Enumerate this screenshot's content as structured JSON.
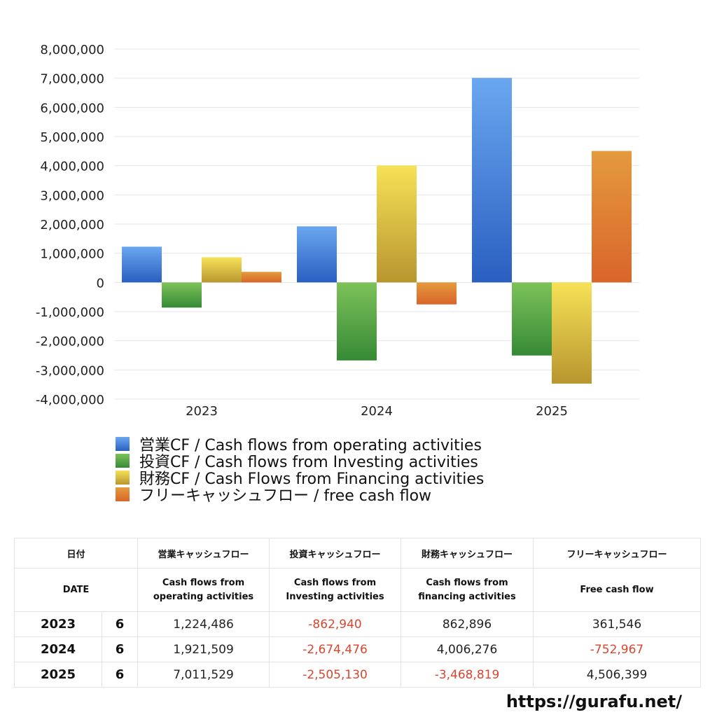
{
  "chart_data": {
    "type": "bar",
    "categories": [
      "2023",
      "2024",
      "2025"
    ],
    "ylim": [
      -4000000,
      8000000
    ],
    "yticks": [
      "8,000,000",
      "7,000,000",
      "6,000,000",
      "5,000,000",
      "4,000,000",
      "3,000,000",
      "2,000,000",
      "1,000,000",
      "0",
      "-1,000,000",
      "-2,000,000",
      "-3,000,000",
      "-4,000,000"
    ],
    "ytick_values": [
      8000000,
      7000000,
      6000000,
      5000000,
      4000000,
      3000000,
      2000000,
      1000000,
      0,
      -1000000,
      -2000000,
      -3000000,
      -4000000
    ],
    "grid": true,
    "legend_position": "bottom",
    "series": [
      {
        "name": "営業CF / Cash flows from operating activities",
        "values": [
          1224486,
          1921509,
          7011529
        ],
        "color_top": "#6aa7f0",
        "color_bottom": "#2a5fc0"
      },
      {
        "name": "投資CF / Cash flows from Investing activities",
        "values": [
          -862940,
          -2674476,
          -2505130
        ],
        "color_top": "#7dc25a",
        "color_bottom": "#368a35"
      },
      {
        "name": "財務CF / Cash Flows from Financing activities",
        "values": [
          862896,
          4006276,
          -3468819
        ],
        "color_top": "#f6e257",
        "color_bottom": "#b8962f"
      },
      {
        "name": "フリーキャッシュフロー / free cash flow",
        "values": [
          361546,
          -752967,
          4506399
        ],
        "color_top": "#e49a3e",
        "color_bottom": "#d9652a"
      }
    ]
  },
  "table": {
    "header1": {
      "date": "日付",
      "operating": "営業キャッシュフロー",
      "investing": "投資キャッシュフロー",
      "financing": "財務キャッシュフロー",
      "free": "フリーキャッシュフロー"
    },
    "header2": {
      "date": "DATE",
      "operating_l1": "Cash flows from",
      "operating_l2": "operating activities",
      "investing_l1": "Cash flows from",
      "investing_l2": "Investing activities",
      "financing_l1": "Cash flows from",
      "financing_l2": "financing activities",
      "free": "Free cash flow"
    },
    "rows": [
      {
        "year": "2023",
        "month": "6",
        "operating": "1,224,486",
        "investing": "-862,940",
        "financing": "862,896",
        "free": "361,546"
      },
      {
        "year": "2024",
        "month": "6",
        "operating": "1,921,509",
        "investing": "-2,674,476",
        "financing": "4,006,276",
        "free": "-752,967"
      },
      {
        "year": "2025",
        "month": "6",
        "operating": "7,011,529",
        "investing": "-2,505,130",
        "financing": "-3,468,819",
        "free": "4,506,399"
      }
    ]
  },
  "footer": {
    "url": "https://gurafu.net/"
  }
}
